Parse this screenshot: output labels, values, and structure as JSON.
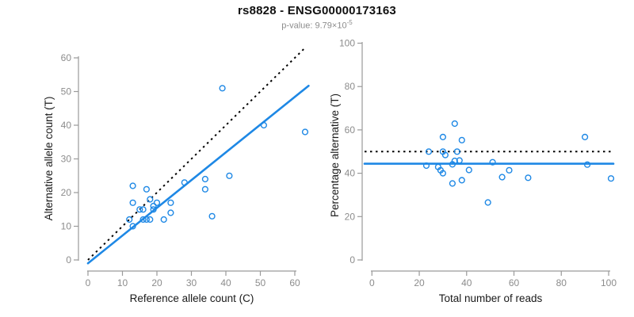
{
  "header": {
    "title": "rs8828 - ENSG00000173163",
    "subtitle_prefix": "p-value: 9.79×10",
    "subtitle_exponent": "-5"
  },
  "colors": {
    "accent_blue": "#1E88E5",
    "identity_line_black": "#000000",
    "axis_line_gray": "#9A9A9A",
    "tick_label_gray": "#8C8C8C",
    "axis_title_color": "#1A1A1A",
    "subtitle_gray": "#8C8C8C",
    "background": "#FFFFFF"
  },
  "chart_data": [
    {
      "id": "allele-count-scatter",
      "type": "scatter",
      "xlabel": "Reference allele count (C)",
      "ylabel": "Alternative allele count (T)",
      "xticks": [
        0,
        10,
        20,
        30,
        40,
        50,
        60
      ],
      "yticks": [
        0,
        10,
        20,
        30,
        40,
        50,
        60
      ],
      "xlim": [
        0,
        64
      ],
      "ylim": [
        0,
        64
      ],
      "grid": false,
      "legend": "none",
      "points": [
        [
          13,
          22
        ],
        [
          13,
          17
        ],
        [
          17,
          21
        ],
        [
          39,
          51
        ],
        [
          12,
          12
        ],
        [
          15,
          15
        ],
        [
          18,
          18
        ],
        [
          16,
          15
        ],
        [
          19,
          16
        ],
        [
          20,
          17
        ],
        [
          13,
          10
        ],
        [
          19,
          15
        ],
        [
          28,
          23
        ],
        [
          16,
          12
        ],
        [
          17,
          12
        ],
        [
          18,
          12
        ],
        [
          24,
          17
        ],
        [
          34,
          24
        ],
        [
          51,
          40
        ],
        [
          22,
          12
        ],
        [
          24,
          14
        ],
        [
          34,
          21
        ],
        [
          41,
          25
        ],
        [
          63,
          38
        ],
        [
          36,
          13
        ]
      ],
      "lines": [
        {
          "name": "identity-line",
          "style": "dotted",
          "color": "#000000",
          "x1": 0,
          "y1": 0,
          "x2": 63,
          "y2": 63
        },
        {
          "name": "regression-line",
          "style": "solid",
          "color": "#1E88E5",
          "x1": 0,
          "y1": -1,
          "x2": 64,
          "y2": 51.7
        }
      ]
    },
    {
      "id": "percentage-alternative-scatter",
      "type": "scatter",
      "xlabel": "Total number of reads",
      "ylabel": "Percentage alternative (T)",
      "xticks": [
        0,
        20,
        40,
        60,
        80,
        100
      ],
      "yticks": [
        0,
        20,
        40,
        60,
        80,
        100
      ],
      "xlim": [
        0,
        103
      ],
      "ylim": [
        0,
        100
      ],
      "grid": false,
      "legend": "none",
      "points": [
        [
          35,
          62.9
        ],
        [
          30,
          56.7
        ],
        [
          38,
          55.3
        ],
        [
          90,
          56.7
        ],
        [
          24,
          50
        ],
        [
          30,
          50
        ],
        [
          36,
          50
        ],
        [
          31,
          48.4
        ],
        [
          35,
          45.7
        ],
        [
          37,
          45.9
        ],
        [
          23,
          43.5
        ],
        [
          34,
          44.1
        ],
        [
          51,
          45.1
        ],
        [
          28,
          42.9
        ],
        [
          29,
          41.4
        ],
        [
          30,
          40
        ],
        [
          41,
          41.5
        ],
        [
          58,
          41.4
        ],
        [
          91,
          44
        ],
        [
          34,
          35.3
        ],
        [
          38,
          36.8
        ],
        [
          55,
          38.2
        ],
        [
          66,
          37.9
        ],
        [
          101,
          37.6
        ],
        [
          49,
          26.5
        ]
      ],
      "lines": [
        {
          "name": "expected-50pct-line",
          "style": "dotted",
          "color": "#000000",
          "y": 50
        },
        {
          "name": "mean-percentage-line",
          "style": "solid",
          "color": "#1E88E5",
          "y": 44.4
        }
      ]
    }
  ]
}
